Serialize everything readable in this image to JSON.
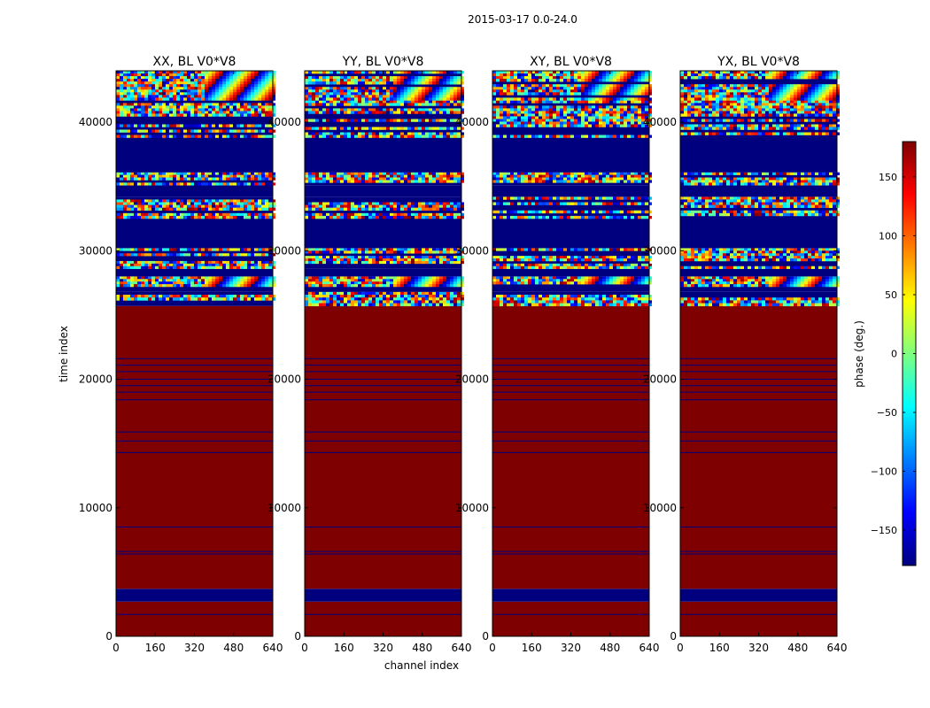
{
  "chart_data": {
    "type": "heatmap",
    "suptitle": "2015-03-17 0.0-24.0",
    "xlabel": "channel index",
    "ylabel": "time index",
    "xlim": [
      0,
      640
    ],
    "ylim": [
      0,
      44000
    ],
    "xticks": [
      0,
      160,
      320,
      480,
      640
    ],
    "yticks": [
      0,
      10000,
      20000,
      30000,
      40000
    ],
    "colorbar": {
      "label": "phase (deg.)",
      "range": [
        -180,
        180
      ],
      "ticks": [
        150,
        100,
        50,
        0,
        -50,
        -100,
        -150
      ],
      "ticklabels": [
        "150",
        "100",
        "50",
        "0",
        "−50",
        "−100",
        "−150"
      ],
      "colormap": [
        "#00007f",
        "#0000ff",
        "#007fff",
        "#00ffff",
        "#7fff7f",
        "#ffff00",
        "#ff7f00",
        "#ff0000",
        "#7f0000"
      ]
    },
    "panels": [
      {
        "title": "XX, BL V0*V8"
      },
      {
        "title": "YY, BL V0*V8"
      },
      {
        "title": "XY, BL V0*V8"
      },
      {
        "title": "YX, BL V0*V8"
      }
    ],
    "bands": [
      {
        "y0": 0,
        "y1": 2700,
        "kind": "flat",
        "phase": 180
      },
      {
        "y0": 2700,
        "y1": 3700,
        "kind": "flat",
        "phase": -180
      },
      {
        "y0": 3700,
        "y1": 25700,
        "kind": "flat",
        "phase": 180
      },
      {
        "y0": 25700,
        "y1": 26800,
        "kind": "noise"
      },
      {
        "y0": 26800,
        "y1": 27200,
        "kind": "flat",
        "phase": -180
      },
      {
        "y0": 27200,
        "y1": 28000,
        "kind": "fringe"
      },
      {
        "y0": 28000,
        "y1": 28600,
        "kind": "flat",
        "phase": -180
      },
      {
        "y0": 28600,
        "y1": 30200,
        "kind": "noise"
      },
      {
        "y0": 30200,
        "y1": 32500,
        "kind": "flat",
        "phase": -180
      },
      {
        "y0": 32500,
        "y1": 34200,
        "kind": "noise"
      },
      {
        "y0": 34200,
        "y1": 35100,
        "kind": "flat",
        "phase": -180
      },
      {
        "y0": 35100,
        "y1": 36100,
        "kind": "noise"
      },
      {
        "y0": 36100,
        "y1": 38800,
        "kind": "flat",
        "phase": -180
      },
      {
        "y0": 38800,
        "y1": 41700,
        "kind": "noise"
      },
      {
        "y0": 41700,
        "y1": 44000,
        "kind": "fringe"
      }
    ],
    "thin_lines": [
      1700,
      6400,
      6600,
      8500,
      14300,
      15200,
      15900,
      18400,
      19000,
      19500,
      20000,
      20600,
      21100,
      21600
    ]
  }
}
